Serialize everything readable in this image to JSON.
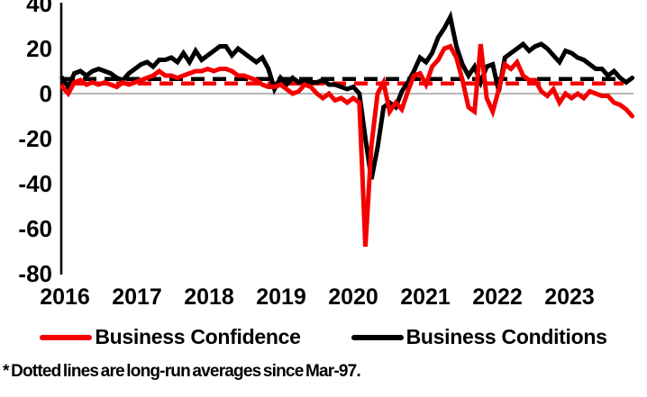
{
  "chart_data": {
    "type": "line",
    "title": "",
    "x_unit": "monthly",
    "x_start": "2016-01",
    "x_end": "2023-11",
    "xticks": [
      "2016",
      "2017",
      "2018",
      "2019",
      "2020",
      "2021",
      "2022",
      "2023"
    ],
    "yticks": [
      40,
      20,
      0,
      -20,
      -40,
      -60,
      -80
    ],
    "ylim": [
      -80,
      40
    ],
    "grid": "zero-line-only",
    "legend_position": "bottom",
    "colors": {
      "confidence": "#f40000",
      "conditions": "#000000",
      "zero_line": "#a0a0a0"
    },
    "series": [
      {
        "name": "Business Confidence",
        "color": "#f40000",
        "values": [
          3,
          0,
          5,
          6,
          4,
          5,
          4,
          5,
          4,
          3,
          5,
          4,
          5,
          6,
          7,
          8,
          10,
          8,
          8,
          7,
          8,
          9,
          10,
          10,
          11,
          10,
          11,
          11,
          10,
          8,
          8,
          7,
          6,
          4,
          3,
          3,
          4,
          2,
          0,
          1,
          4,
          3,
          0,
          -2,
          0,
          -3,
          -2,
          -4,
          -2,
          -4,
          -68,
          -23,
          0,
          5,
          -8,
          -4,
          -7,
          1,
          8,
          9,
          4,
          12,
          15,
          20,
          21,
          16,
          6,
          -6,
          -8,
          22,
          -2,
          -8,
          2,
          13,
          11,
          14,
          8,
          6,
          6,
          1,
          -1,
          2,
          -4,
          0,
          -2,
          0,
          -2,
          1,
          0,
          -1,
          -1,
          -4,
          -5,
          -7,
          -10
        ]
      },
      {
        "name": "Business Conditions",
        "color": "#000000",
        "values": [
          7,
          3,
          9,
          10,
          8,
          10,
          11,
          10,
          9,
          7,
          6,
          9,
          11,
          13,
          14,
          12,
          15,
          15,
          16,
          14,
          18,
          14,
          19,
          15,
          17,
          19,
          21,
          21,
          17,
          20,
          18,
          16,
          14,
          16,
          11,
          2,
          7,
          4,
          7,
          5,
          6,
          5,
          5,
          6,
          4,
          4,
          3,
          2,
          3,
          0,
          -20,
          -38,
          -24,
          -6,
          -4,
          -6,
          1,
          5,
          10,
          16,
          14,
          18,
          25,
          29,
          34,
          21,
          13,
          8,
          12,
          5,
          12,
          13,
          1,
          16,
          18,
          20,
          22,
          19,
          21,
          22,
          20,
          17,
          14,
          19,
          18,
          16,
          15,
          13,
          11,
          11,
          8,
          10,
          7,
          5,
          7
        ]
      }
    ],
    "long_run_averages": {
      "confidence": 5,
      "conditions": 6,
      "style": "dashed",
      "since": "Mar-97"
    },
    "footnote": "* Dotted lines are long-run averages since Mar-97."
  }
}
